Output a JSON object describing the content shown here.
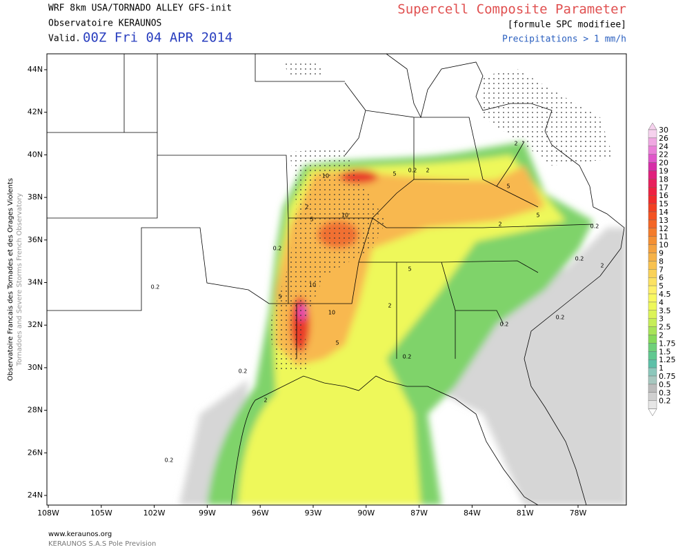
{
  "header": {
    "model": "WRF 8km USA/TORNADO ALLEY  GFS-init",
    "source": "Observatoire KERAUNOS",
    "valid_label": "Valid.",
    "valid_time": "00Z Fri 04 APR 2014",
    "title": "Supercell Composite Parameter",
    "subtitle": "[formule SPC modifiee]",
    "overlay": "Precipitations > 1 mm/h"
  },
  "side_text": [
    "Observatoire Francais des Tornades et des Orages Violents",
    "Tornadoes and Severe Storms French Observatory"
  ],
  "lat_labels": [
    "44N",
    "42N",
    "40N",
    "38N",
    "36N",
    "34N",
    "32N",
    "30N",
    "28N",
    "26N",
    "24N"
  ],
  "lon_labels": [
    "108W",
    "105W",
    "102W",
    "99W",
    "96W",
    "93W",
    "90W",
    "87W",
    "84W",
    "81W",
    "78W"
  ],
  "contour_labels": [
    "10",
    "5",
    "0.2",
    "2",
    "2",
    "5",
    "10",
    "0.2",
    "5",
    "0.2",
    "10",
    "5",
    "2",
    "10",
    "5",
    "0.2",
    "2",
    "0.2",
    "0.2",
    "0.2",
    "0.2",
    "2",
    "2",
    "5",
    "5",
    "0.2",
    "2",
    "0.2"
  ],
  "colorbar": {
    "levels": [
      30,
      26,
      24,
      22,
      20,
      19,
      18,
      17,
      16,
      15,
      14,
      13,
      12,
      11,
      10,
      9,
      8,
      7,
      6,
      5,
      4.5,
      4,
      3.5,
      3,
      2.5,
      2,
      1.75,
      1.5,
      1.25,
      1,
      0.75,
      0.5,
      0.3,
      0.2
    ],
    "colors": [
      "#f6d2ee",
      "#f0a8e2",
      "#ea80d8",
      "#e056ca",
      "#d62ea8",
      "#e0207c",
      "#e8205c",
      "#ee2242",
      "#f02c2c",
      "#f24022",
      "#f45222",
      "#f46626",
      "#f47c2c",
      "#f49034",
      "#f4a240",
      "#f6b248",
      "#f8c250",
      "#fad258",
      "#fce262",
      "#fef06a",
      "#f8f862",
      "#eef85a",
      "#dcf458",
      "#c6ee58",
      "#a8e458",
      "#86da5a",
      "#6ed07a",
      "#60c890",
      "#5cc0a8",
      "#8cc8bc",
      "#a8c8c0",
      "#bcbcbc",
      "#d0d0d0",
      "#e6e6e6"
    ]
  },
  "footer": [
    "www.keraunos.org",
    "KERAUNOS S.A.S Pole Prevision"
  ]
}
